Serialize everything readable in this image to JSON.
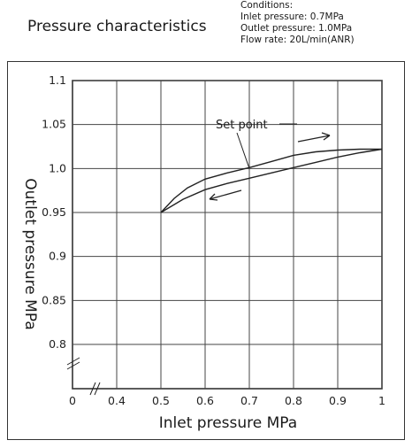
{
  "header": {
    "title": "Pressure characteristics",
    "conditions": [
      "Conditions:",
      "Inlet pressure: 0.7MPa",
      "Outlet pressure: 1.0MPa",
      "Flow rate: 20L/min(ANR)"
    ]
  },
  "chart_data": {
    "type": "line",
    "xlabel": "Inlet pressure MPa",
    "ylabel": "Outlet pressure MPa",
    "x_ticks": [
      "0",
      "0.4",
      "0.5",
      "0.6",
      "0.7",
      "0.8",
      "0.9",
      "1"
    ],
    "y_ticks": [
      "1.1",
      "1.05",
      "1.0",
      "0.95",
      "0.9",
      "0.85",
      "0.8"
    ],
    "xlim": [
      0.3,
      1.0
    ],
    "ylim": [
      0.75,
      1.1
    ],
    "axis_breaks": true,
    "grid": true,
    "annotation": "Set point",
    "set_point": {
      "x": 0.7,
      "y": 1.0
    },
    "series": [
      {
        "direction": "increasing",
        "x": [
          0.5,
          0.53,
          0.56,
          0.6,
          0.65,
          0.7,
          0.75,
          0.8,
          0.85,
          0.9,
          0.95,
          1.0
        ],
        "y": [
          0.95,
          0.966,
          0.978,
          0.988,
          0.995,
          1.001,
          1.008,
          1.015,
          1.019,
          1.021,
          1.022,
          1.022
        ]
      },
      {
        "direction": "decreasing",
        "x": [
          1.0,
          0.95,
          0.9,
          0.85,
          0.8,
          0.75,
          0.7,
          0.65,
          0.6,
          0.55,
          0.5
        ],
        "y": [
          1.022,
          1.018,
          1.013,
          1.007,
          1.001,
          0.995,
          0.989,
          0.983,
          0.976,
          0.965,
          0.95
        ]
      }
    ]
  }
}
